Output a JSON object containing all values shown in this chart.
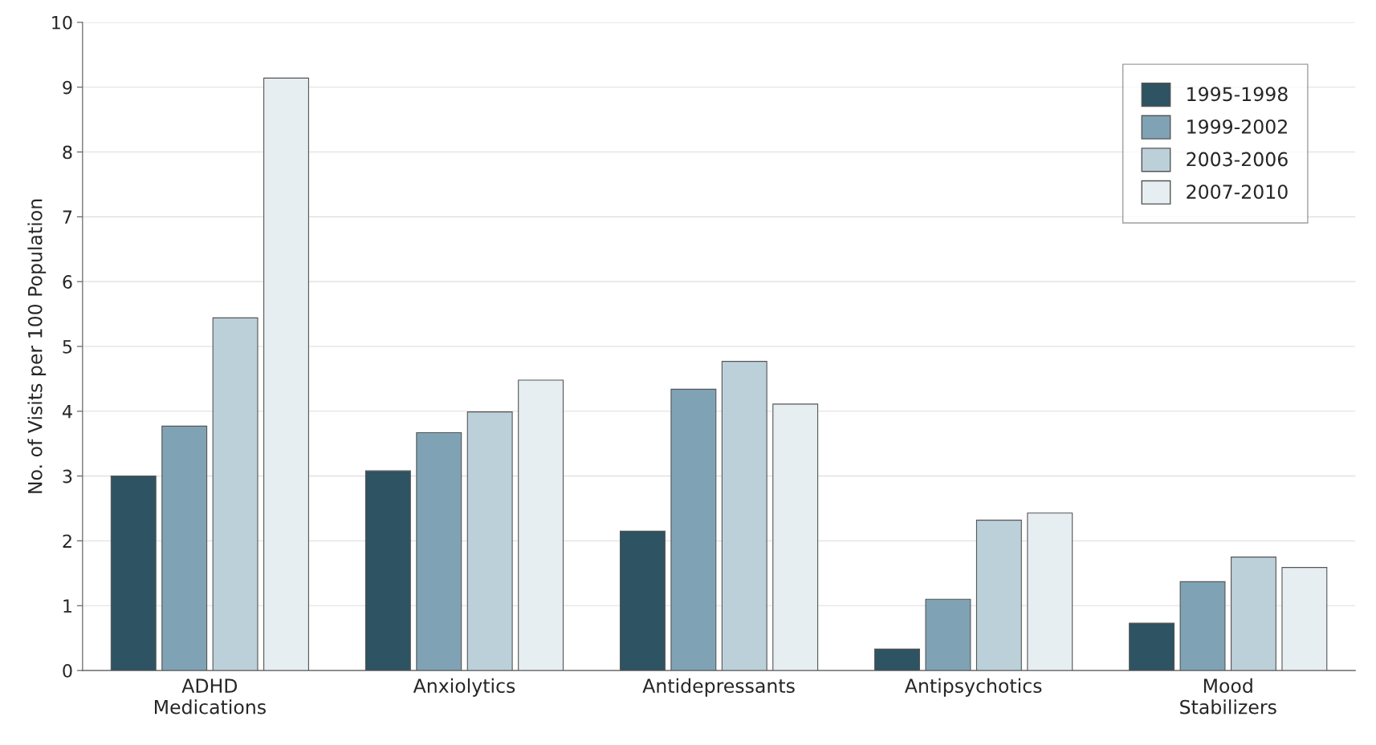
{
  "chart_data": {
    "type": "bar",
    "ylabel": "No. of Visits per 100 Population",
    "categories": [
      "ADHD\nMedications",
      "Anxiolytics",
      "Antidepressants",
      "Antipsychotics",
      "Mood\nStabilizers"
    ],
    "series": [
      {
        "name": "1995-1998",
        "color": "#2e5362",
        "values": [
          3.0,
          3.08,
          2.15,
          0.33,
          0.73
        ]
      },
      {
        "name": "1999-2002",
        "color": "#7fa3b5",
        "values": [
          3.77,
          3.67,
          4.34,
          1.1,
          1.37
        ]
      },
      {
        "name": "2003-2006",
        "color": "#bcd0da",
        "values": [
          5.44,
          3.99,
          4.77,
          2.32,
          1.75
        ]
      },
      {
        "name": "2007-2010",
        "color": "#e6eef2",
        "values": [
          9.14,
          4.48,
          4.11,
          2.43,
          1.59
        ]
      }
    ],
    "ylim": [
      0,
      10
    ],
    "yticks": [
      0,
      1,
      2,
      3,
      4,
      5,
      6,
      7,
      8,
      9,
      10
    ],
    "grid": "y",
    "legend": "top right"
  }
}
